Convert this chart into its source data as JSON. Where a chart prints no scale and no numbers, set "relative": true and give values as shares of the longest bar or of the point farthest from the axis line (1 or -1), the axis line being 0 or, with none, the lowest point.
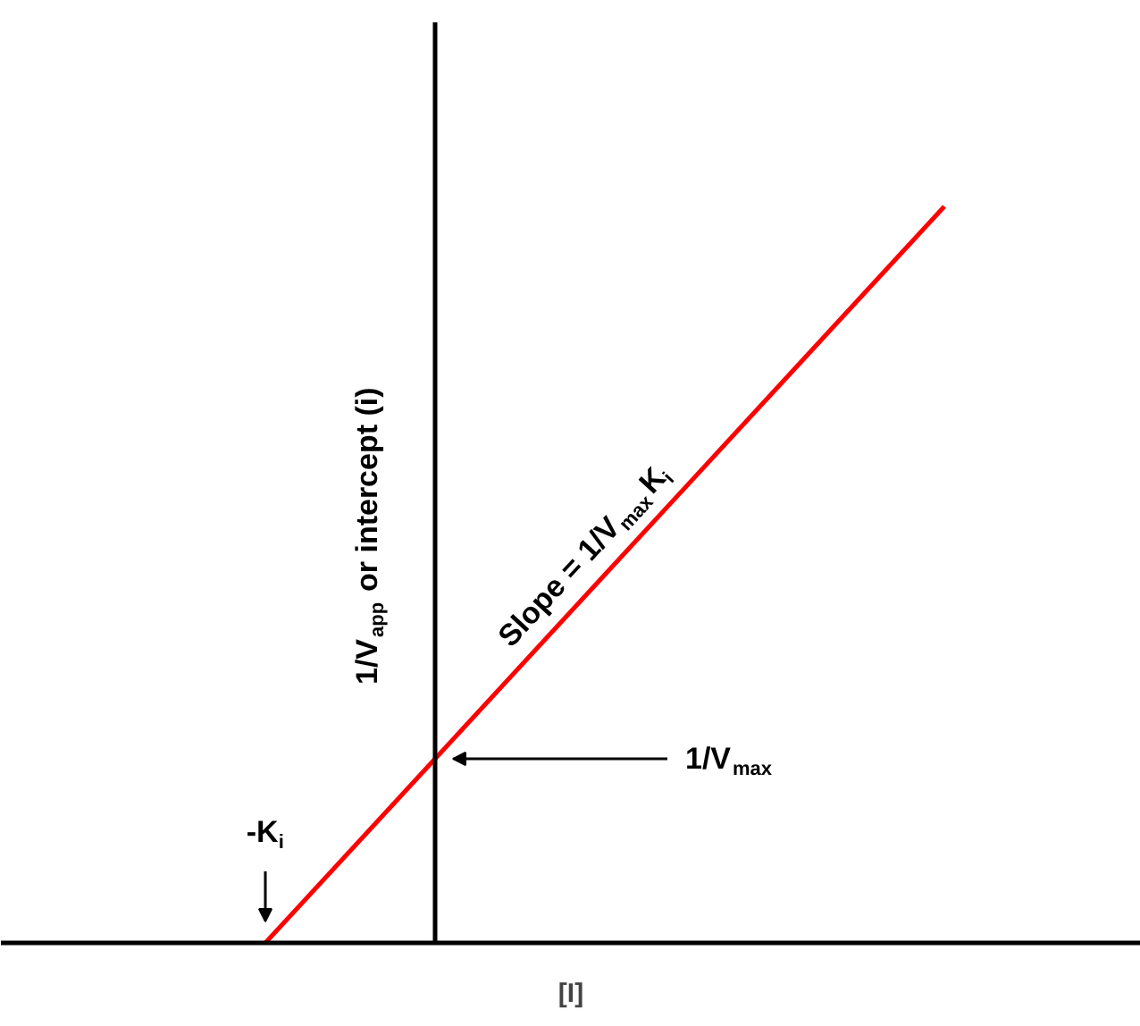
{
  "chart_data": {
    "type": "line",
    "relative": true,
    "categories": [
      null,
      null,
      null,
      null,
      null
    ],
    "series": [
      {
        "color": "#ff0000",
        "values": [
          0,
          0.25,
          0.5,
          0.75,
          1
        ]
      }
    ],
    "xlabel": "[I]",
    "ylabel": "1/V$_{app}$ or intercept (i)",
    "grid": false,
    "marker": "none",
    "line_style": "solid",
    "annotations": [
      "Slope = 1/V$_{max}$K$_{i}$",
      "-K$_{i}$",
      "1/V$_{max}$"
    ]
  }
}
